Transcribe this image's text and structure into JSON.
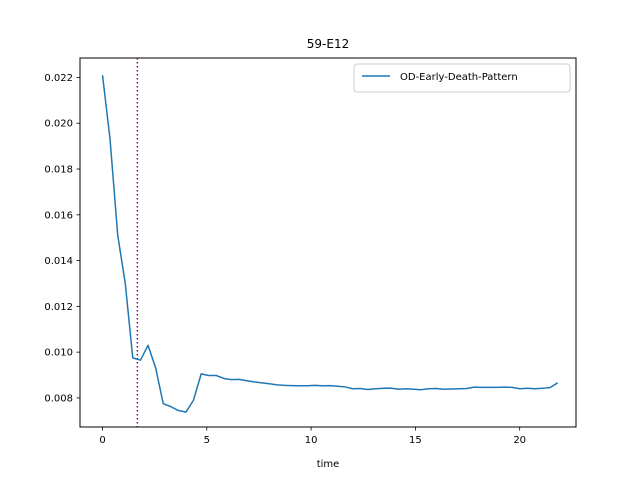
{
  "chart_data": {
    "type": "line",
    "title": "59-E12",
    "xlabel": "time",
    "ylabel": "",
    "xlim": [
      -1.08,
      22.7
    ],
    "ylim": [
      0.00673,
      0.02285
    ],
    "x_ticks": [
      0,
      5,
      10,
      15,
      20
    ],
    "x_tick_labels": [
      "0",
      "5",
      "10",
      "15",
      "20"
    ],
    "y_ticks": [
      0.008,
      0.01,
      0.012,
      0.014,
      0.016,
      0.018,
      0.02,
      0.022
    ],
    "y_tick_labels": [
      "0.008",
      "0.010",
      "0.012",
      "0.014",
      "0.016",
      "0.018",
      "0.020",
      "0.022"
    ],
    "legend_position": "top-right",
    "grid": false,
    "vertical_marker": {
      "x": 1.67,
      "color": "#800080",
      "style": "dotted"
    },
    "series": [
      {
        "name": "OD-Early-Death-Pattern",
        "color": "#1f77b4",
        "x": [
          0,
          0.36,
          0.73,
          1.09,
          1.45,
          1.82,
          2.18,
          2.55,
          2.91,
          3.27,
          3.64,
          4.0,
          4.36,
          4.73,
          5.09,
          5.45,
          5.82,
          6.18,
          6.55,
          6.91,
          7.27,
          7.64,
          8.0,
          8.36,
          8.73,
          9.09,
          9.45,
          9.82,
          10.18,
          10.55,
          10.91,
          11.27,
          11.64,
          12.0,
          12.36,
          12.73,
          13.09,
          13.45,
          13.82,
          14.18,
          14.55,
          14.91,
          15.27,
          15.64,
          16.0,
          16.36,
          16.73,
          17.09,
          17.45,
          17.82,
          18.18,
          18.55,
          18.91,
          19.27,
          19.64,
          20.0,
          20.36,
          20.73,
          21.09,
          21.45,
          21.82
        ],
        "y": [
          0.0221,
          0.0193,
          0.0151,
          0.013,
          0.00975,
          0.00965,
          0.0103,
          0.0093,
          0.00775,
          0.00762,
          0.00745,
          0.00738,
          0.0079,
          0.00905,
          0.00898,
          0.00898,
          0.00885,
          0.0088,
          0.00881,
          0.00875,
          0.0087,
          0.00866,
          0.00862,
          0.00857,
          0.00855,
          0.00854,
          0.00853,
          0.00853,
          0.00855,
          0.00853,
          0.00854,
          0.00851,
          0.00848,
          0.0084,
          0.00841,
          0.00837,
          0.0084,
          0.00842,
          0.00843,
          0.00838,
          0.0084,
          0.00838,
          0.00836,
          0.0084,
          0.00841,
          0.00838,
          0.00839,
          0.0084,
          0.00841,
          0.00847,
          0.00846,
          0.00846,
          0.00846,
          0.00847,
          0.00846,
          0.0084,
          0.00842,
          0.0084,
          0.00842,
          0.00845,
          0.00866
        ]
      }
    ]
  }
}
